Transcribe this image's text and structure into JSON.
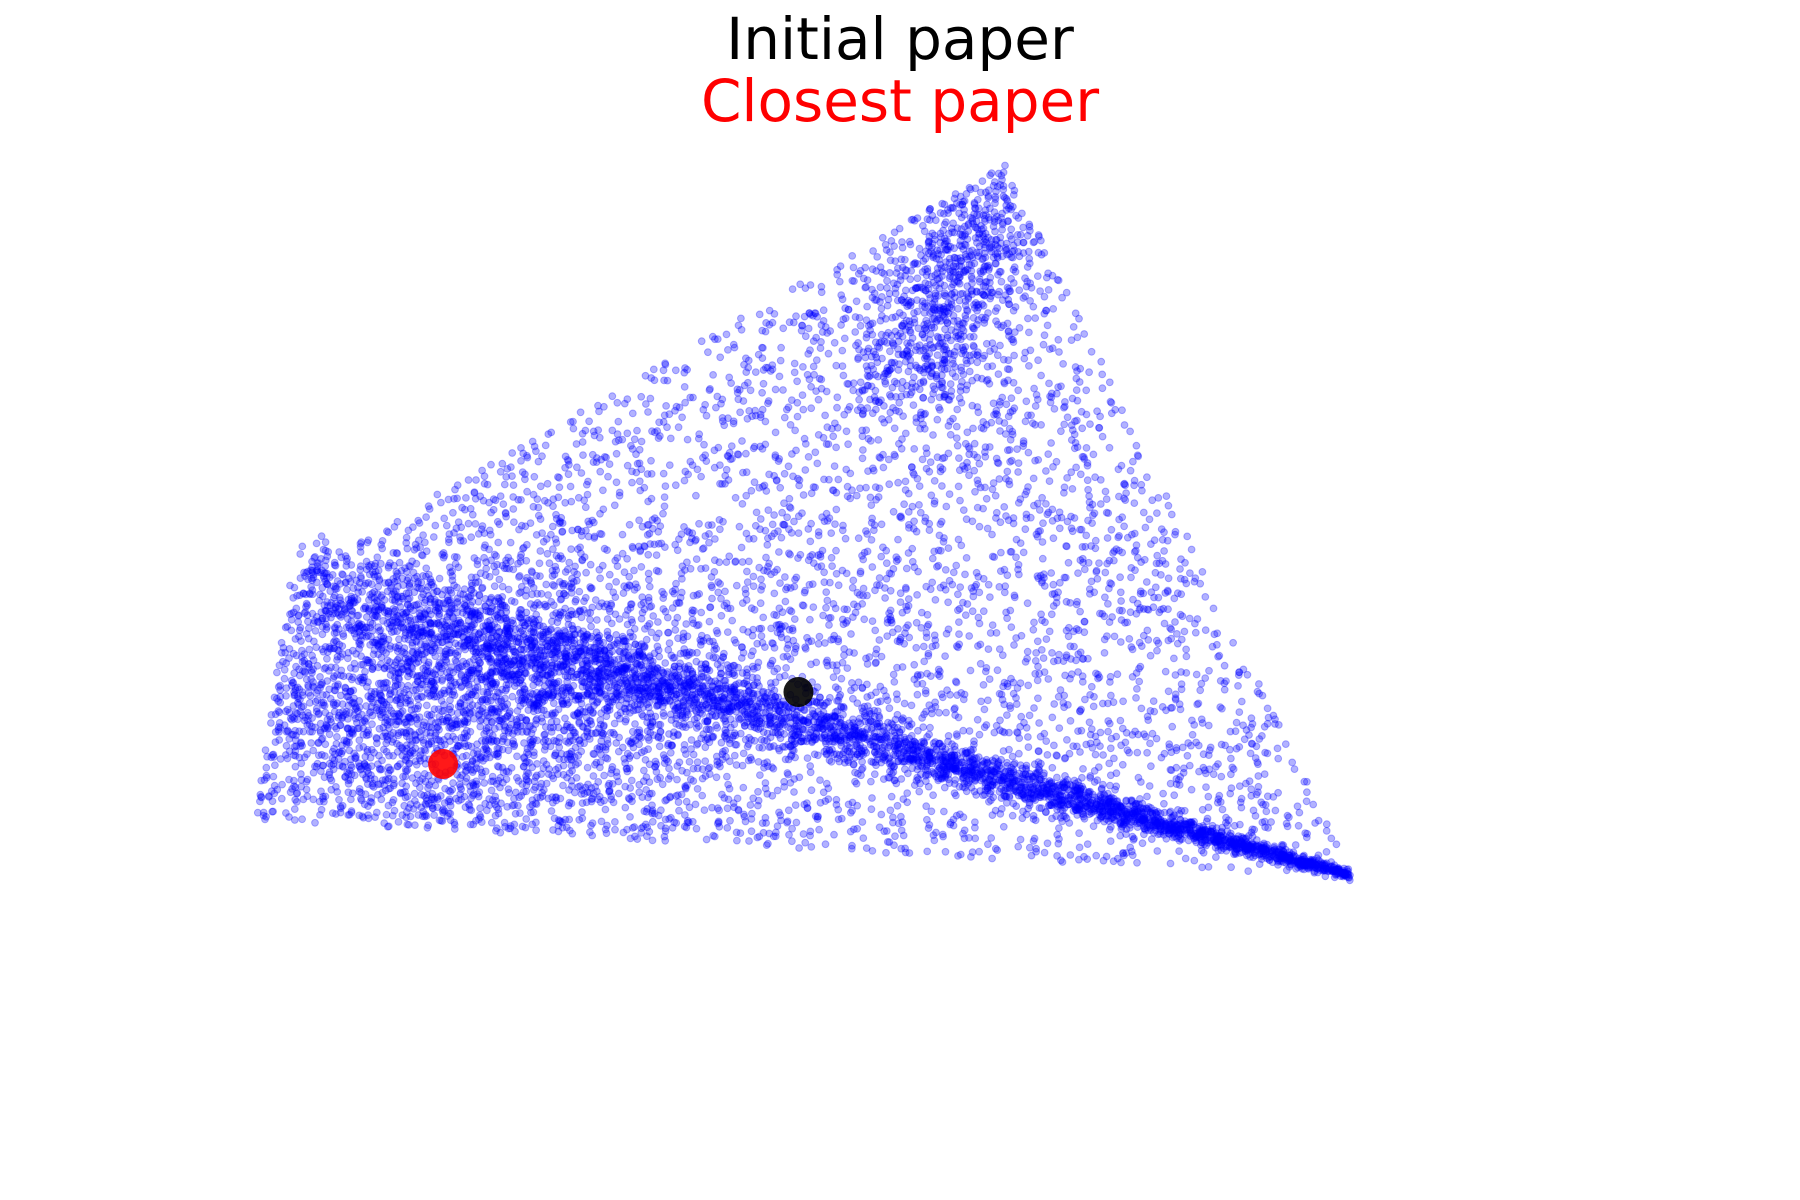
{
  "chart_data": {
    "type": "scatter",
    "title_lines": [
      {
        "text": "Initial paper",
        "color": "#000000"
      },
      {
        "text": "Closest paper",
        "color": "#ff0000"
      }
    ],
    "axes_visible": false,
    "xlim": [
      -2.6,
      2.6
    ],
    "ylim": [
      -2.0,
      2.0
    ],
    "point_color": "#0000ff",
    "point_alpha": 0.3,
    "highlight_points": [
      {
        "label": "Initial paper",
        "x": -0.4,
        "y": -0.3,
        "color": "#000000"
      },
      {
        "label": "Closest paper",
        "x": -1.8,
        "y": -0.6,
        "color": "#ff0000"
      }
    ]
  }
}
